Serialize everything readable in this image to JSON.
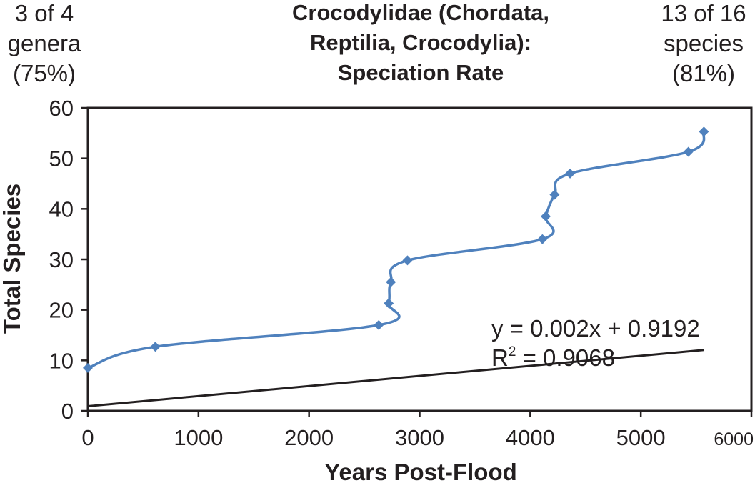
{
  "corner_left": [
    "3 of 4",
    "genera",
    "(75%)"
  ],
  "corner_right": [
    "13 of 16",
    "species",
    "(81%)"
  ],
  "chart_data": {
    "type": "scatter",
    "title": [
      "Crocodylidae (Chordata,",
      "Reptilia, Crocodylia):",
      "Speciation Rate"
    ],
    "xlabel": "Years Post-Flood",
    "ylabel": "Total Species",
    "xlim": [
      0,
      6000
    ],
    "ylim": [
      0,
      60
    ],
    "x_ticks": [
      "0",
      "1000",
      "2000",
      "3000",
      "4000",
      "5000",
      "6000"
    ],
    "y_ticks": [
      "0",
      "10",
      "20",
      "30",
      "40",
      "50",
      "60"
    ],
    "grid": false,
    "series": [
      {
        "x": [
          0,
          610,
          2630,
          2720,
          2740,
          2890,
          4110,
          4140,
          4220,
          4360,
          5430,
          5570
        ],
        "y": [
          8.5,
          12.7,
          17,
          21.3,
          25.5,
          29.8,
          34,
          38.5,
          42.8,
          47,
          51.3,
          55.3
        ],
        "smooth": true,
        "color": "#4f81bd"
      }
    ],
    "trendline": {
      "slope": 0.002,
      "intercept": 0.9192,
      "x_range": [
        0,
        5570
      ],
      "color": "#231f20",
      "equation_label": "y = 0.002x + 0.9192",
      "r2_prefix": "R",
      "r2_sup": "2",
      "r2_value": " = 0.9068"
    }
  }
}
